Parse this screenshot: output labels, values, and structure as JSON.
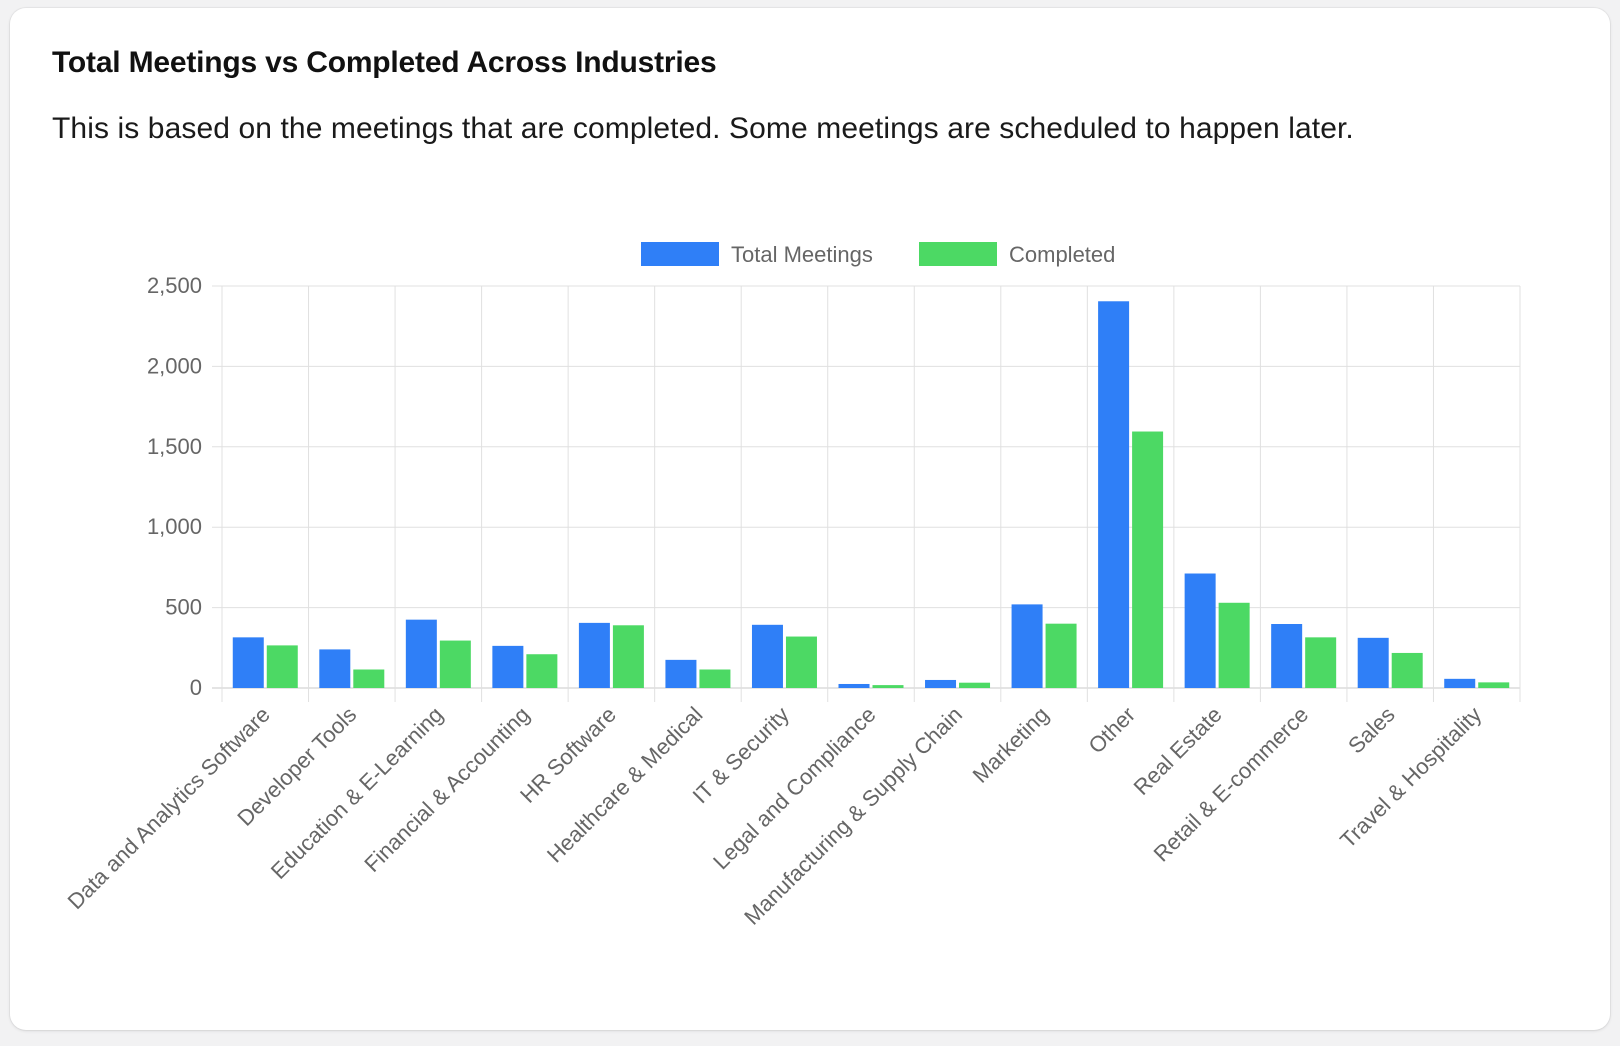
{
  "card": {
    "title": "Total Meetings vs Completed Across Industries",
    "subtitle": "This is based on the meetings that are completed. Some meetings are scheduled to happen later."
  },
  "colors": {
    "total": "#2f7ff7",
    "completed": "#4cd964",
    "grid": "#e0e0e0",
    "tick_text": "#666666"
  },
  "chart_data": {
    "type": "bar",
    "categories": [
      "Data and Analytics Software",
      "Developer Tools",
      "Education & E-Learning",
      "Financial & Accounting",
      "HR Software",
      "Healthcare & Medical",
      "IT & Security",
      "Legal and Compliance",
      "Manufacturing & Supply Chain",
      "Marketing",
      "Other",
      "Real Estate",
      "Retail & E-commerce",
      "Sales",
      "Travel & Hospitality"
    ],
    "series": [
      {
        "name": "Total Meetings",
        "color": "#2f7ff7",
        "values": [
          315,
          240,
          425,
          262,
          405,
          175,
          393,
          25,
          50,
          520,
          2405,
          712,
          398,
          312,
          57
        ]
      },
      {
        "name": "Completed",
        "color": "#4cd964",
        "values": [
          265,
          115,
          295,
          210,
          390,
          115,
          320,
          18,
          33,
          400,
          1595,
          530,
          315,
          218,
          35
        ]
      }
    ],
    "ylim": [
      0,
      2500
    ],
    "yticks": [
      0,
      500,
      1000,
      1500,
      2000,
      2500
    ],
    "ytick_labels": [
      "0",
      "500",
      "1,000",
      "1,500",
      "2,000",
      "2,500"
    ],
    "grid": true,
    "legend": "top-center",
    "xlabel": "",
    "ylabel": ""
  }
}
